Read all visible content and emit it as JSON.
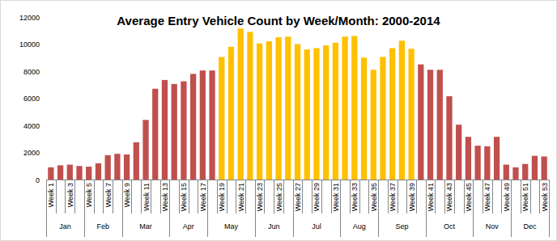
{
  "chart_data": {
    "type": "bar",
    "title": "Average Entry Vehicle Count by Week/Month: 2000-2014",
    "categories": [
      "Week 1",
      null,
      "Week 3",
      null,
      "Week 5",
      null,
      "Week 7",
      null,
      "Week 9",
      null,
      "Week 11",
      null,
      "Week 13",
      null,
      "Week 15",
      null,
      "Week 17",
      null,
      "Week 19",
      null,
      "Week 21",
      null,
      "Week 23",
      null,
      "Week 25",
      null,
      "Week 27",
      null,
      "Week 29",
      null,
      "Week 31",
      null,
      "Week 33",
      null,
      "Week 35",
      null,
      "Week 37",
      null,
      "Week 39",
      null,
      "Week 41",
      null,
      "Week 43",
      null,
      "Week 45",
      null,
      "Week 47",
      null,
      "Week 49",
      null,
      "Week 51",
      null,
      "Week 53"
    ],
    "values": [
      900,
      1050,
      1100,
      1000,
      950,
      1200,
      1800,
      1900,
      1850,
      2750,
      4400,
      6700,
      7350,
      7050,
      7250,
      7800,
      8050,
      8050,
      9050,
      9800,
      11150,
      10900,
      10050,
      10200,
      10500,
      10550,
      10000,
      9600,
      9700,
      9900,
      10100,
      10550,
      10600,
      9000,
      8100,
      9050,
      9700,
      10250,
      9650,
      8500,
      8100,
      8100,
      6150,
      4050,
      3150,
      2500,
      2450,
      3150,
      1100,
      900,
      1150,
      1750,
      1700
    ],
    "colors": [
      "#c0504d",
      "#c0504d",
      "#c0504d",
      "#c0504d",
      "#c0504d",
      "#c0504d",
      "#c0504d",
      "#c0504d",
      "#c0504d",
      "#c0504d",
      "#c0504d",
      "#c0504d",
      "#c0504d",
      "#c0504d",
      "#c0504d",
      "#c0504d",
      "#c0504d",
      "#c0504d",
      "#ffc000",
      "#ffc000",
      "#ffc000",
      "#ffc000",
      "#ffc000",
      "#ffc000",
      "#ffc000",
      "#ffc000",
      "#ffc000",
      "#ffc000",
      "#ffc000",
      "#ffc000",
      "#ffc000",
      "#ffc000",
      "#ffc000",
      "#ffc000",
      "#ffc000",
      "#ffc000",
      "#ffc000",
      "#ffc000",
      "#ffc000",
      "#c0504d",
      "#c0504d",
      "#c0504d",
      "#c0504d",
      "#c0504d",
      "#c0504d",
      "#c0504d",
      "#c0504d",
      "#c0504d",
      "#c0504d",
      "#c0504d",
      "#c0504d",
      "#c0504d",
      "#c0504d"
    ],
    "month_groups": [
      {
        "label": "Jan",
        "count": 4
      },
      {
        "label": "Feb",
        "count": 4
      },
      {
        "label": "Mar",
        "count": 5
      },
      {
        "label": "Apr",
        "count": 4
      },
      {
        "label": "May",
        "count": 5
      },
      {
        "label": "Jun",
        "count": 4
      },
      {
        "label": "Jul",
        "count": 5
      },
      {
        "label": "Aug",
        "count": 4
      },
      {
        "label": "Sep",
        "count": 5
      },
      {
        "label": "Oct",
        "count": 5
      },
      {
        "label": "Nov",
        "count": 4
      },
      {
        "label": "Dec",
        "count": 4
      }
    ],
    "ylim": [
      0,
      12000
    ],
    "yticks": [
      0,
      2000,
      4000,
      6000,
      8000,
      10000,
      12000
    ],
    "grid": false
  }
}
